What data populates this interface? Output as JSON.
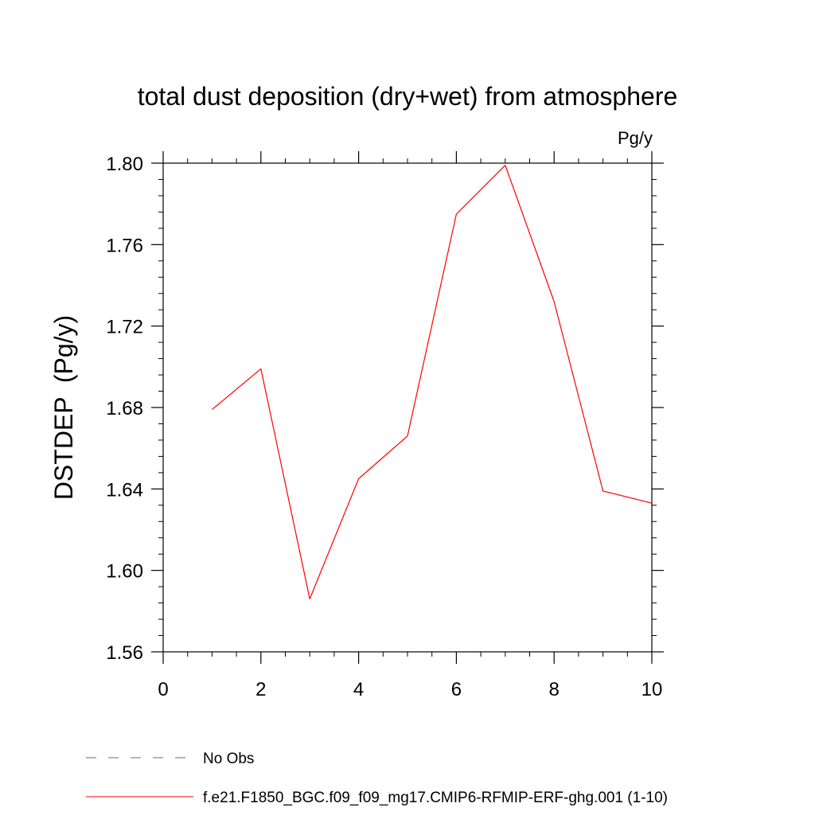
{
  "chart_data": {
    "type": "line",
    "title": "total dust deposition (dry+wet) from atmosphere",
    "units_label": "Pg/y",
    "ylabel": "DSTDEP  (Pg/y)",
    "xlabel": "",
    "xlim": [
      0,
      10
    ],
    "ylim": [
      1.56,
      1.8
    ],
    "x_ticks": [
      0,
      2,
      4,
      6,
      8,
      10
    ],
    "x_tick_labels": [
      "0",
      "2",
      "4",
      "6",
      "8",
      "10"
    ],
    "y_ticks": [
      1.56,
      1.6,
      1.64,
      1.68,
      1.72,
      1.76,
      1.8
    ],
    "y_tick_labels": [
      "1.56",
      "1.60",
      "1.64",
      "1.68",
      "1.72",
      "1.76",
      "1.80"
    ],
    "grid": false,
    "legend_position": "bottom",
    "series": [
      {
        "name": "f.e21.F1850_BGC.f09_f09_mg17.CMIP6-RFMIP-ERF-ghg.001 (1-10)",
        "color": "#ff0000",
        "style": "solid",
        "x": [
          1,
          2,
          3,
          4,
          5,
          6,
          7,
          8,
          9,
          10
        ],
        "y": [
          1.679,
          1.699,
          1.586,
          1.645,
          1.666,
          1.775,
          1.799,
          1.732,
          1.639,
          1.633
        ]
      }
    ],
    "legend": [
      {
        "label": "No Obs",
        "color": "#6a5acd",
        "style": "dashed"
      },
      {
        "label": "f.e21.F1850_BGC.f09_f09_mg17.CMIP6-RFMIP-ERF-ghg.001 (1-10)",
        "color": "#ff0000",
        "style": "solid"
      }
    ]
  }
}
